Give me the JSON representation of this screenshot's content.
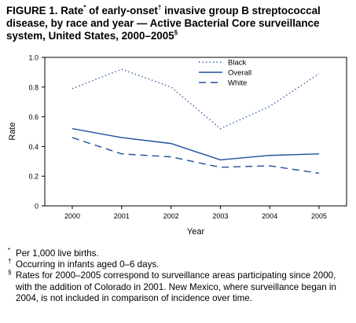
{
  "figure": {
    "title_main": "FIGURE 1. Rate",
    "title_mark_rate": "*",
    "title_mid": " of early-onset",
    "title_mark_onset": "†",
    "title_rest": " invasive group B streptococcal disease, by race and year — Active Bacterial Core surveillance system, United States, 2000–2005",
    "title_mark_end": "§"
  },
  "chart_data": {
    "type": "line",
    "x": [
      2000,
      2001,
      2002,
      2003,
      2004,
      2005
    ],
    "xlabel": "Year",
    "ylabel": "Rate",
    "ylim": [
      0,
      1.0
    ],
    "yticks": [
      "0",
      "0.2",
      "0.4",
      "0.6",
      "0.8",
      "1.0"
    ],
    "xticks": [
      "2000",
      "2001",
      "2002",
      "2003",
      "2004",
      "2005"
    ],
    "grid": false,
    "legend_position": "top-right",
    "series": [
      {
        "name": "Black",
        "style": "dotted",
        "color": "#1f4e9c",
        "values": [
          0.79,
          0.92,
          0.8,
          0.52,
          0.67,
          0.89
        ]
      },
      {
        "name": "Overall",
        "style": "solid",
        "color": "#1f4e9c",
        "values": [
          0.52,
          0.46,
          0.42,
          0.31,
          0.34,
          0.35
        ]
      },
      {
        "name": "White",
        "style": "dashed",
        "color": "#1f4e9c",
        "values": [
          0.46,
          0.35,
          0.33,
          0.26,
          0.27,
          0.22
        ]
      }
    ]
  },
  "footnotes": [
    {
      "mark": "*",
      "text": "Per 1,000 live births."
    },
    {
      "mark": "†",
      "text": "Occurring in infants aged 0–6 days."
    },
    {
      "mark": "§",
      "text": "Rates for 2000–2005 correspond to surveillance areas participating since 2000, with the addition of Colorado in 2001. New Mexico, where surveillance began in 2004, is not included in comparison of incidence over time."
    }
  ]
}
